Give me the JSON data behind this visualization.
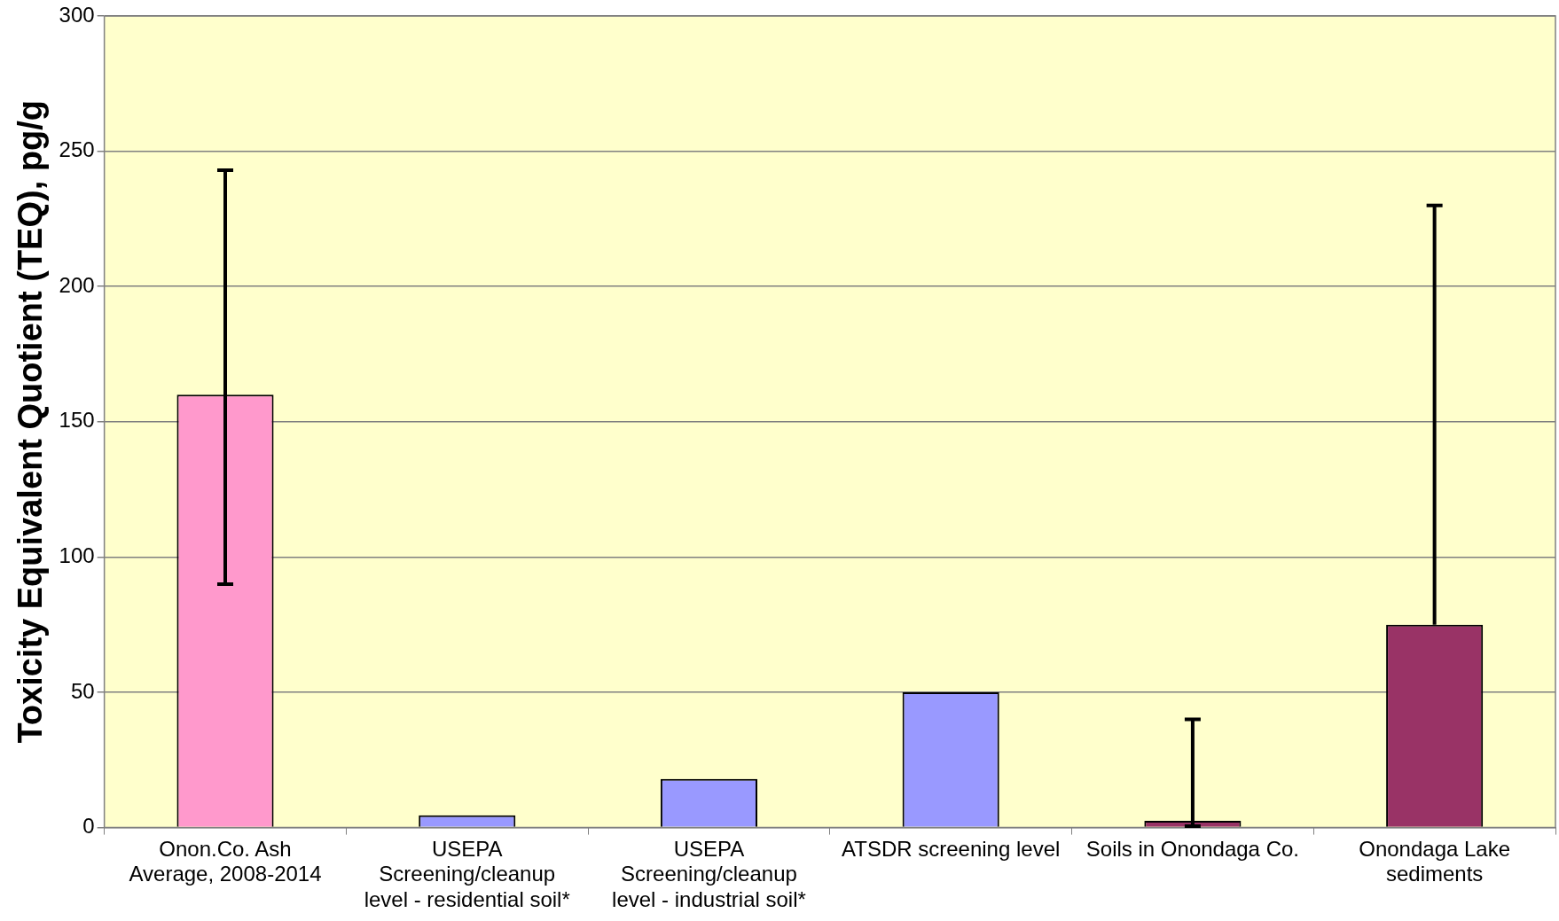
{
  "chart_data": {
    "type": "bar",
    "ylabel": "Toxicity Equivalent Quotient (TEQ), pg/g",
    "categories": [
      "Onon.Co. Ash Average, 2008-2014",
      "USEPA Screening/cleanup level - residential soil*",
      "USEPA Screening/cleanup level - industrial soil*",
      "ATSDR screening level",
      "Soils in Onondaga Co.",
      "Onondaga Lake sediments"
    ],
    "values": [
      160,
      4.5,
      18,
      50,
      2.5,
      75
    ],
    "colors": [
      "#ff99cc",
      "#9999ff",
      "#9999ff",
      "#9999ff",
      "#993366",
      "#993366"
    ],
    "errors": [
      [
        90,
        243
      ],
      null,
      null,
      null,
      [
        0.5,
        40
      ],
      [
        75,
        230
      ]
    ],
    "ylim": [
      0,
      300
    ],
    "yticks": [
      0,
      50,
      100,
      150,
      200,
      250,
      300
    ],
    "grid": "y",
    "legend": false
  }
}
